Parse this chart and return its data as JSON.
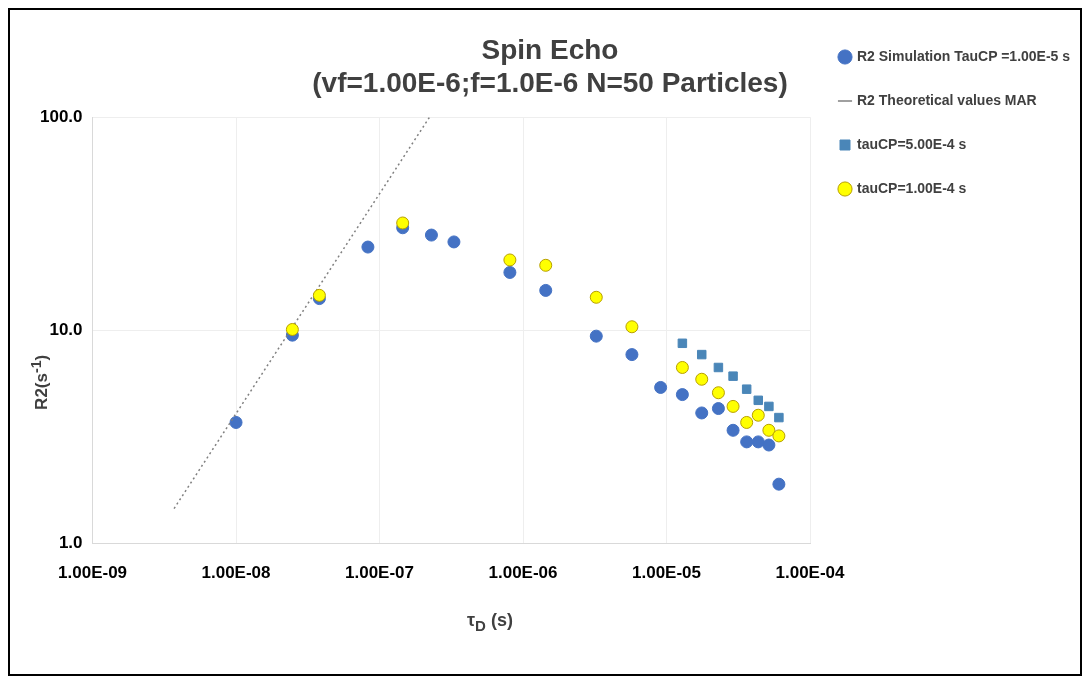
{
  "chart_data": {
    "type": "scatter",
    "title": "Spin Echo",
    "subtitle": "(vf=1.00E-6;f=1.0E-6 N=50 Particles)",
    "xlabel": "τ$_{D}$ (s)",
    "ylabel": "R2(s$^{-1}$)",
    "log": "xy",
    "grid": true,
    "legend": "right",
    "xlim": [
      1e-09,
      0.0001
    ],
    "xticks": [
      {
        "value": 1e-09,
        "label": "1.00E-09"
      },
      {
        "value": 1e-08,
        "label": "1.00E-08"
      },
      {
        "value": 1e-07,
        "label": "1.00E-07"
      },
      {
        "value": 1e-06,
        "label": "1.00E-06"
      },
      {
        "value": 1e-05,
        "label": "1.00E-05"
      },
      {
        "value": 0.0001,
        "label": "1.00E-04"
      }
    ],
    "ylim": [
      1,
      100
    ],
    "yticks": [
      {
        "value": 1,
        "label": "1.0"
      },
      {
        "value": 10,
        "label": "10.0"
      },
      {
        "value": 100,
        "label": "100.0"
      }
    ],
    "series": [
      {
        "name": "R2 Simulation TauCP =1.00E-5 s",
        "type": "scatter",
        "marker": "circle",
        "color": "#4472c4",
        "x": [
          1e-08,
          2.47e-08,
          3.81e-08,
          8.3e-08,
          1.45e-07,
          2.3e-07,
          3.3e-07,
          8.1e-07,
          1.44e-06,
          3.24e-06,
          5.74e-06,
          9.1e-06,
          1.29e-05,
          1.76e-05,
          2.3e-05,
          2.91e-05,
          3.62e-05,
          4.36e-05,
          5.17e-05,
          6.07e-05
        ],
        "values": [
          3.7,
          9.5,
          14.1,
          24.6,
          30.3,
          28,
          26,
          18.7,
          15.4,
          9.4,
          7.7,
          5.4,
          5.0,
          4.1,
          4.3,
          3.4,
          3.0,
          3.0,
          2.9,
          1.9
        ]
      },
      {
        "name": "R2 Theoretical values MAR",
        "type": "line",
        "marker": "none",
        "line_style": "dotted",
        "color": "#808080",
        "x": [
          3.7e-09,
          2.23e-07
        ],
        "values": [
          1.46,
          100
        ]
      },
      {
        "name": "tauCP=5.00E-4 s",
        "type": "scatter",
        "marker": "square",
        "color": "#4a86b8",
        "x": [
          1.29e-05,
          1.76e-05,
          2.3e-05,
          2.91e-05,
          3.62e-05,
          4.36e-05,
          5.17e-05,
          6.07e-05
        ],
        "values": [
          8.7,
          7.7,
          6.7,
          6.1,
          5.3,
          4.7,
          4.4,
          3.9
        ]
      },
      {
        "name": "tauCP=1.00E-4 s",
        "type": "scatter",
        "marker": "circle",
        "color": "#ffff00",
        "x": [
          2.47e-08,
          3.81e-08,
          1.45e-07,
          8.1e-07,
          1.44e-06,
          3.24e-06,
          5.74e-06,
          1.29e-05,
          1.76e-05,
          2.3e-05,
          2.91e-05,
          3.62e-05,
          4.36e-05,
          5.17e-05,
          6.07e-05
        ],
        "values": [
          10.1,
          14.6,
          31.9,
          21.4,
          20.2,
          14.3,
          10.4,
          6.7,
          5.9,
          5.1,
          4.4,
          3.7,
          4.0,
          3.4,
          3.2
        ]
      }
    ]
  }
}
